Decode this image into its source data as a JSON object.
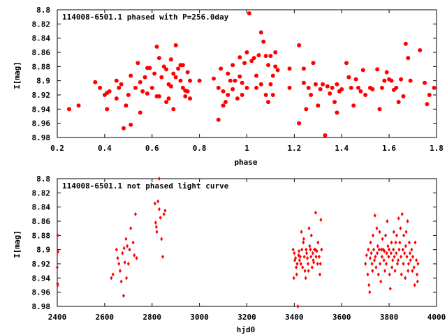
{
  "chart_data": [
    {
      "type": "scatter",
      "title": "114008-6501.1 phased with P=256.0day",
      "xlabel": "phase",
      "ylabel": "I[mag]",
      "xlim": [
        0.2,
        1.8
      ],
      "ylim": [
        8.8,
        8.98
      ],
      "y_inverted": true,
      "grid": false,
      "marker_color": "#ff0000",
      "marker": "filled-circle",
      "x_ticks": [
        "0.2",
        "0.4",
        "0.6",
        "0.8",
        "1",
        "1.2",
        "1.4",
        "1.6",
        "1.8"
      ],
      "y_ticks": [
        "8.8",
        "8.82",
        "8.84",
        "8.86",
        "8.88",
        "8.9",
        "8.92",
        "8.94",
        "8.96",
        "8.98"
      ],
      "points": [
        [
          0.25,
          8.94
        ],
        [
          0.29,
          8.935
        ],
        [
          0.36,
          8.902
        ],
        [
          0.38,
          8.91
        ],
        [
          0.4,
          8.92
        ],
        [
          0.41,
          8.917
        ],
        [
          0.41,
          8.94
        ],
        [
          0.42,
          8.915
        ],
        [
          0.45,
          8.9
        ],
        [
          0.45,
          8.925
        ],
        [
          0.46,
          8.91
        ],
        [
          0.47,
          8.905
        ],
        [
          0.48,
          8.967
        ],
        [
          0.49,
          8.935
        ],
        [
          0.5,
          8.92
        ],
        [
          0.51,
          8.893
        ],
        [
          0.51,
          8.962
        ],
        [
          0.53,
          8.91
        ],
        [
          0.54,
          8.875
        ],
        [
          0.55,
          8.902
        ],
        [
          0.55,
          8.945
        ],
        [
          0.56,
          8.915
        ],
        [
          0.57,
          8.895
        ],
        [
          0.58,
          8.882
        ],
        [
          0.58,
          8.918
        ],
        [
          0.59,
          8.882
        ],
        [
          0.6,
          8.91
        ],
        [
          0.61,
          8.89
        ],
        [
          0.62,
          8.852
        ],
        [
          0.62,
          8.922
        ],
        [
          0.63,
          8.868
        ],
        [
          0.63,
          8.922
        ],
        [
          0.64,
          8.895
        ],
        [
          0.65,
          8.88
        ],
        [
          0.66,
          8.884
        ],
        [
          0.66,
          8.93
        ],
        [
          0.67,
          8.905
        ],
        [
          0.67,
          8.925
        ],
        [
          0.68,
          8.87
        ],
        [
          0.68,
          8.908
        ],
        [
          0.69,
          8.89
        ],
        [
          0.69,
          8.94
        ],
        [
          0.7,
          8.85
        ],
        [
          0.7,
          8.895
        ],
        [
          0.71,
          8.883
        ],
        [
          0.72,
          8.878
        ],
        [
          0.72,
          8.9
        ],
        [
          0.73,
          8.878
        ],
        [
          0.73,
          8.91
        ],
        [
          0.74,
          8.914
        ],
        [
          0.74,
          8.922
        ],
        [
          0.75,
          8.888
        ],
        [
          0.75,
          8.915
        ],
        [
          0.76,
          8.9
        ],
        [
          0.76,
          8.925
        ],
        [
          0.8,
          8.9
        ],
        [
          0.86,
          8.897
        ],
        [
          0.88,
          8.91
        ],
        [
          0.88,
          8.955
        ],
        [
          0.89,
          8.883
        ],
        [
          0.9,
          8.915
        ],
        [
          0.9,
          8.935
        ],
        [
          0.91,
          8.93
        ],
        [
          0.92,
          8.89
        ],
        [
          0.92,
          8.92
        ],
        [
          0.93,
          8.9
        ],
        [
          0.94,
          8.878
        ],
        [
          0.94,
          8.912
        ],
        [
          0.95,
          8.9
        ],
        [
          0.96,
          8.925
        ],
        [
          0.97,
          8.867
        ],
        [
          0.97,
          8.894
        ],
        [
          0.98,
          8.92
        ],
        [
          0.98,
          8.903
        ],
        [
          0.99,
          8.875
        ],
        [
          1.0,
          8.86
        ],
        [
          1.0,
          8.91
        ],
        [
          1.01,
          8.805
        ],
        [
          1.02,
          8.872
        ],
        [
          1.03,
          8.868
        ],
        [
          1.04,
          8.893
        ],
        [
          1.04,
          8.91
        ],
        [
          1.05,
          8.864
        ],
        [
          1.06,
          8.832
        ],
        [
          1.06,
          8.905
        ],
        [
          1.07,
          8.845
        ],
        [
          1.08,
          8.865
        ],
        [
          1.08,
          8.92
        ],
        [
          1.09,
          8.878
        ],
        [
          1.09,
          8.93
        ],
        [
          1.1,
          8.865
        ],
        [
          1.1,
          8.905
        ],
        [
          1.11,
          8.893
        ],
        [
          1.11,
          8.92
        ],
        [
          1.12,
          8.86
        ],
        [
          1.12,
          8.88
        ],
        [
          1.13,
          8.885
        ],
        [
          1.18,
          8.883
        ],
        [
          1.18,
          8.91
        ],
        [
          1.22,
          8.85
        ],
        [
          1.22,
          8.96
        ],
        [
          1.24,
          8.883
        ],
        [
          1.24,
          8.903
        ],
        [
          1.25,
          8.94
        ],
        [
          1.26,
          8.91
        ],
        [
          1.27,
          8.92
        ],
        [
          1.28,
          8.875
        ],
        [
          1.29,
          8.905
        ],
        [
          1.3,
          8.935
        ],
        [
          1.31,
          8.912
        ],
        [
          1.32,
          8.905
        ],
        [
          1.33,
          8.977
        ],
        [
          1.34,
          8.908
        ],
        [
          1.35,
          8.918
        ],
        [
          1.36,
          8.91
        ],
        [
          1.37,
          8.93
        ],
        [
          1.38,
          8.905
        ],
        [
          1.38,
          8.945
        ],
        [
          1.39,
          8.915
        ],
        [
          1.4,
          8.912
        ],
        [
          1.42,
          8.875
        ],
        [
          1.43,
          8.895
        ],
        [
          1.44,
          8.91
        ],
        [
          1.45,
          8.935
        ],
        [
          1.46,
          8.898
        ],
        [
          1.47,
          8.91
        ],
        [
          1.48,
          8.915
        ],
        [
          1.49,
          8.885
        ],
        [
          1.5,
          8.92
        ],
        [
          1.52,
          8.91
        ],
        [
          1.53,
          8.912
        ],
        [
          1.55,
          8.884
        ],
        [
          1.56,
          8.94
        ],
        [
          1.57,
          8.91
        ],
        [
          1.58,
          8.9
        ],
        [
          1.59,
          8.888
        ],
        [
          1.6,
          8.898
        ],
        [
          1.61,
          8.9
        ],
        [
          1.62,
          8.913
        ],
        [
          1.63,
          8.91
        ],
        [
          1.64,
          8.93
        ],
        [
          1.65,
          8.898
        ],
        [
          1.66,
          8.922
        ],
        [
          1.67,
          8.848
        ],
        [
          1.68,
          8.868
        ],
        [
          1.69,
          8.9
        ],
        [
          1.73,
          8.857
        ],
        [
          1.75,
          8.903
        ],
        [
          1.76,
          8.933
        ],
        [
          1.77,
          8.92
        ],
        [
          1.79,
          8.91
        ]
      ]
    },
    {
      "type": "scatter",
      "title": "114008-6501.1 not phased light curve",
      "xlabel": "hjd0",
      "ylabel": "I[mag]",
      "xlim": [
        2400,
        4000
      ],
      "ylim": [
        8.8,
        8.98
      ],
      "y_inverted": true,
      "grid": false,
      "marker_color": "#ff0000",
      "marker": "small-diamond",
      "x_ticks": [
        "2400",
        "2600",
        "2800",
        "3000",
        "3200",
        "3400",
        "3600",
        "3800",
        "4000"
      ],
      "y_ticks": [
        "8.8",
        "8.82",
        "8.84",
        "8.86",
        "8.88",
        "8.9",
        "8.92",
        "8.94",
        "8.96",
        "8.98"
      ],
      "points": [
        [
          2402,
          8.88
        ],
        [
          2403,
          8.903
        ],
        [
          2400,
          8.925
        ],
        [
          2401,
          8.948
        ],
        [
          2402,
          8.95
        ],
        [
          2628,
          8.94
        ],
        [
          2635,
          8.935
        ],
        [
          2650,
          8.9
        ],
        [
          2655,
          8.912
        ],
        [
          2660,
          8.92
        ],
        [
          2665,
          8.93
        ],
        [
          2670,
          8.945
        ],
        [
          2675,
          8.905
        ],
        [
          2680,
          8.965
        ],
        [
          2682,
          8.898
        ],
        [
          2685,
          8.918
        ],
        [
          2690,
          8.885
        ],
        [
          2692,
          8.94
        ],
        [
          2695,
          8.895
        ],
        [
          2700,
          8.92
        ],
        [
          2705,
          8.9
        ],
        [
          2710,
          8.87
        ],
        [
          2720,
          8.89
        ],
        [
          2725,
          8.908
        ],
        [
          2730,
          8.85
        ],
        [
          2735,
          8.912
        ],
        [
          2812,
          8.835
        ],
        [
          2815,
          8.862
        ],
        [
          2818,
          8.868
        ],
        [
          2820,
          8.875
        ],
        [
          2825,
          8.832
        ],
        [
          2830,
          8.843
        ],
        [
          2835,
          8.855
        ],
        [
          2840,
          8.885
        ],
        [
          2845,
          8.91
        ],
        [
          2850,
          8.85
        ],
        [
          2855,
          8.845
        ],
        [
          2830,
          8.8
        ],
        [
          3395,
          8.9
        ],
        [
          3398,
          8.94
        ],
        [
          3400,
          8.905
        ],
        [
          3402,
          8.915
        ],
        [
          3405,
          8.912
        ],
        [
          3408,
          8.925
        ],
        [
          3410,
          8.935
        ],
        [
          3412,
          8.92
        ],
        [
          3415,
          8.98
        ],
        [
          3418,
          8.908
        ],
        [
          3420,
          8.902
        ],
        [
          3422,
          8.915
        ],
        [
          3425,
          8.91
        ],
        [
          3428,
          8.92
        ],
        [
          3430,
          8.875
        ],
        [
          3432,
          8.9
        ],
        [
          3435,
          8.925
        ],
        [
          3438,
          8.89
        ],
        [
          3440,
          8.885
        ],
        [
          3442,
          8.91
        ],
        [
          3445,
          8.93
        ],
        [
          3448,
          8.94
        ],
        [
          3450,
          8.9
        ],
        [
          3452,
          8.905
        ],
        [
          3455,
          8.912
        ],
        [
          3458,
          8.92
        ],
        [
          3460,
          8.93
        ],
        [
          3462,
          8.87
        ],
        [
          3465,
          8.895
        ],
        [
          3468,
          8.9
        ],
        [
          3470,
          8.91
        ],
        [
          3472,
          8.88
        ],
        [
          3475,
          8.925
        ],
        [
          3478,
          8.905
        ],
        [
          3480,
          8.915
        ],
        [
          3482,
          8.918
        ],
        [
          3485,
          8.9
        ],
        [
          3488,
          8.9
        ],
        [
          3490,
          8.848
        ],
        [
          3492,
          8.91
        ],
        [
          3495,
          8.902
        ],
        [
          3498,
          8.92
        ],
        [
          3500,
          8.89
        ],
        [
          3505,
          8.91
        ],
        [
          3508,
          8.935
        ],
        [
          3510,
          8.92
        ],
        [
          3512,
          8.858
        ],
        [
          3515,
          8.9
        ],
        [
          3700,
          8.92
        ],
        [
          3705,
          8.908
        ],
        [
          3710,
          8.935
        ],
        [
          3712,
          8.9
        ],
        [
          3715,
          8.95
        ],
        [
          3718,
          8.96
        ],
        [
          3720,
          8.912
        ],
        [
          3722,
          8.89
        ],
        [
          3725,
          8.905
        ],
        [
          3728,
          8.92
        ],
        [
          3730,
          8.93
        ],
        [
          3732,
          8.88
        ],
        [
          3735,
          8.9
        ],
        [
          3738,
          8.915
        ],
        [
          3740,
          8.852
        ],
        [
          3742,
          8.91
        ],
        [
          3745,
          8.925
        ],
        [
          3748,
          8.87
        ],
        [
          3750,
          8.905
        ],
        [
          3752,
          8.895
        ],
        [
          3755,
          8.935
        ],
        [
          3758,
          8.9
        ],
        [
          3760,
          8.875
        ],
        [
          3762,
          8.92
        ],
        [
          3765,
          8.945
        ],
        [
          3768,
          8.9
        ],
        [
          3770,
          8.91
        ],
        [
          3772,
          8.885
        ],
        [
          3775,
          8.9
        ],
        [
          3778,
          8.915
        ],
        [
          3780,
          8.902
        ],
        [
          3782,
          8.93
        ],
        [
          3785,
          8.88
        ],
        [
          3788,
          8.92
        ],
        [
          3790,
          8.905
        ],
        [
          3792,
          8.86
        ],
        [
          3795,
          8.895
        ],
        [
          3798,
          8.91
        ],
        [
          3800,
          8.9
        ],
        [
          3802,
          8.935
        ],
        [
          3805,
          8.955
        ],
        [
          3808,
          8.905
        ],
        [
          3810,
          8.89
        ],
        [
          3812,
          8.925
        ],
        [
          3815,
          8.915
        ],
        [
          3818,
          8.9
        ],
        [
          3820,
          8.875
        ],
        [
          3822,
          8.91
        ],
        [
          3825,
          8.93
        ],
        [
          3828,
          8.89
        ],
        [
          3830,
          8.905
        ],
        [
          3832,
          8.88
        ],
        [
          3835,
          8.92
        ],
        [
          3838,
          8.915
        ],
        [
          3840,
          8.856
        ],
        [
          3842,
          8.9
        ],
        [
          3845,
          8.89
        ],
        [
          3848,
          8.87
        ],
        [
          3850,
          8.91
        ],
        [
          3852,
          8.935
        ],
        [
          3855,
          8.85
        ],
        [
          3858,
          8.9
        ],
        [
          3860,
          8.92
        ],
        [
          3862,
          8.88
        ],
        [
          3865,
          8.905
        ],
        [
          3868,
          8.94
        ],
        [
          3870,
          8.895
        ],
        [
          3872,
          8.875
        ],
        [
          3875,
          8.91
        ],
        [
          3878,
          8.86
        ],
        [
          3880,
          8.93
        ],
        [
          3882,
          8.92
        ],
        [
          3885,
          8.89
        ],
        [
          3888,
          8.905
        ],
        [
          3890,
          8.915
        ],
        [
          3895,
          8.9
        ],
        [
          3898,
          8.93
        ],
        [
          3900,
          8.91
        ],
        [
          3905,
          8.925
        ],
        [
          3908,
          8.95
        ],
        [
          3910,
          8.89
        ],
        [
          3915,
          8.915
        ],
        [
          3918,
          8.935
        ],
        [
          3920,
          8.945
        ],
        [
          3922,
          8.92
        ]
      ]
    }
  ]
}
